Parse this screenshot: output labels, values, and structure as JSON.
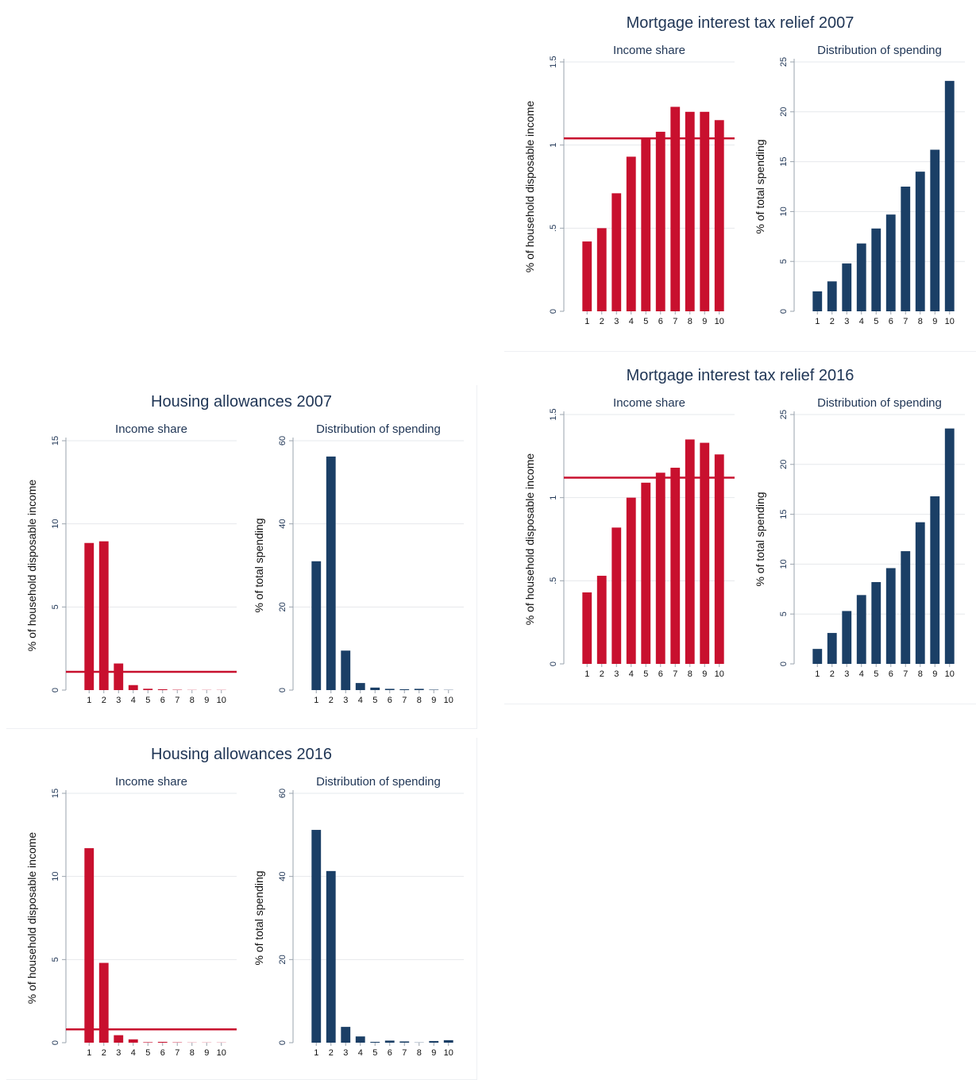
{
  "colors": {
    "red": "#c8102e",
    "blue": "#1b3f66",
    "grid": "#e6e8ec",
    "axis": "#9aa3ad",
    "text": "#1f3555"
  },
  "chart_data": [
    {
      "id": "mir2007",
      "title": "Mortgage interest tax relief 2007",
      "charts": [
        {
          "type": "bar",
          "subtitle": "Income share",
          "xlabel": "",
          "ylabel": "% of household disposable income",
          "categories": [
            "1",
            "2",
            "3",
            "4",
            "5",
            "6",
            "7",
            "8",
            "9",
            "10"
          ],
          "values": [
            0.42,
            0.5,
            0.71,
            0.93,
            1.04,
            1.08,
            1.23,
            1.2,
            1.2,
            1.15
          ],
          "reference_line": 1.04,
          "ylim": [
            0,
            1.5
          ],
          "yticks": [
            0,
            0.5,
            1,
            1.5
          ],
          "ytick_labels": [
            "0",
            ".5",
            "1",
            "1.5"
          ],
          "color": "red",
          "grid": true
        },
        {
          "type": "bar",
          "subtitle": "Distribution of spending",
          "xlabel": "",
          "ylabel": "% of total spending",
          "categories": [
            "1",
            "2",
            "3",
            "4",
            "5",
            "6",
            "7",
            "8",
            "9",
            "10"
          ],
          "values": [
            2.0,
            3.0,
            4.8,
            6.8,
            8.3,
            9.7,
            12.5,
            14.0,
            16.2,
            23.1
          ],
          "ylim": [
            0,
            25
          ],
          "yticks": [
            0,
            5,
            10,
            15,
            20,
            25
          ],
          "ytick_labels": [
            "0",
            "5",
            "10",
            "15",
            "20",
            "25"
          ],
          "color": "blue",
          "grid": true
        }
      ]
    },
    {
      "id": "ha2007",
      "title": "Housing allowances 2007",
      "charts": [
        {
          "type": "bar",
          "subtitle": "Income share",
          "xlabel": "",
          "ylabel": "% of household disposable income",
          "categories": [
            "1",
            "2",
            "3",
            "4",
            "5",
            "6",
            "7",
            "8",
            "9",
            "10"
          ],
          "values": [
            8.85,
            8.95,
            1.6,
            0.3,
            0.08,
            0.05,
            0.02,
            0.01,
            0.01,
            0.01
          ],
          "reference_line": 1.1,
          "ylim": [
            0,
            15
          ],
          "yticks": [
            0,
            5,
            10,
            15
          ],
          "ytick_labels": [
            "0",
            "5",
            "10",
            "15"
          ],
          "color": "red",
          "grid": true
        },
        {
          "type": "bar",
          "subtitle": "Distribution of spending",
          "xlabel": "",
          "ylabel": "% of total spending",
          "categories": [
            "1",
            "2",
            "3",
            "4",
            "5",
            "6",
            "7",
            "8",
            "9",
            "10"
          ],
          "values": [
            31.0,
            56.2,
            9.5,
            1.7,
            0.6,
            0.3,
            0.2,
            0.3,
            0.1,
            0.05
          ],
          "ylim": [
            0,
            60
          ],
          "yticks": [
            0,
            20,
            40,
            60
          ],
          "ytick_labels": [
            "0",
            "20",
            "40",
            "60"
          ],
          "color": "blue",
          "grid": true
        }
      ]
    },
    {
      "id": "mir2016",
      "title": "Mortgage interest tax relief 2016",
      "charts": [
        {
          "type": "bar",
          "subtitle": "Income share",
          "xlabel": "",
          "ylabel": "% of household disposable income",
          "categories": [
            "1",
            "2",
            "3",
            "4",
            "5",
            "6",
            "7",
            "8",
            "9",
            "10"
          ],
          "values": [
            0.43,
            0.53,
            0.82,
            1.0,
            1.09,
            1.15,
            1.18,
            1.35,
            1.33,
            1.26
          ],
          "reference_line": 1.12,
          "ylim": [
            0,
            1.5
          ],
          "yticks": [
            0,
            0.5,
            1,
            1.5
          ],
          "ytick_labels": [
            "0",
            ".5",
            "1",
            "1.5"
          ],
          "color": "red",
          "grid": true
        },
        {
          "type": "bar",
          "subtitle": "Distribution of spending",
          "xlabel": "",
          "ylabel": "% of total spending",
          "categories": [
            "1",
            "2",
            "3",
            "4",
            "5",
            "6",
            "7",
            "8",
            "9",
            "10"
          ],
          "values": [
            1.5,
            3.1,
            5.3,
            6.9,
            8.2,
            9.6,
            11.3,
            14.2,
            16.8,
            23.6
          ],
          "ylim": [
            0,
            25
          ],
          "yticks": [
            0,
            5,
            10,
            15,
            20,
            25
          ],
          "ytick_labels": [
            "0",
            "5",
            "10",
            "15",
            "20",
            "25"
          ],
          "color": "blue",
          "grid": true
        }
      ]
    },
    {
      "id": "ha2016",
      "title": "Housing allowances 2016",
      "charts": [
        {
          "type": "bar",
          "subtitle": "Income share",
          "xlabel": "",
          "ylabel": "% of household disposable income",
          "categories": [
            "1",
            "2",
            "3",
            "4",
            "5",
            "6",
            "7",
            "8",
            "9",
            "10"
          ],
          "values": [
            11.7,
            4.8,
            0.45,
            0.2,
            0.03,
            0.05,
            0.02,
            0.01,
            0.01,
            0.01
          ],
          "reference_line": 0.8,
          "ylim": [
            0,
            15
          ],
          "yticks": [
            0,
            5,
            10,
            15
          ],
          "ytick_labels": [
            "0",
            "5",
            "10",
            "15"
          ],
          "color": "red",
          "grid": true
        },
        {
          "type": "bar",
          "subtitle": "Distribution of spending",
          "xlabel": "",
          "ylabel": "% of total spending",
          "categories": [
            "1",
            "2",
            "3",
            "4",
            "5",
            "6",
            "7",
            "8",
            "9",
            "10"
          ],
          "values": [
            51.2,
            41.3,
            3.8,
            1.5,
            0.2,
            0.5,
            0.3,
            0.05,
            0.4,
            0.6
          ],
          "ylim": [
            0,
            60
          ],
          "yticks": [
            0,
            20,
            40,
            60
          ],
          "ytick_labels": [
            "0",
            "20",
            "40",
            "60"
          ],
          "color": "blue",
          "grid": true
        }
      ]
    }
  ]
}
